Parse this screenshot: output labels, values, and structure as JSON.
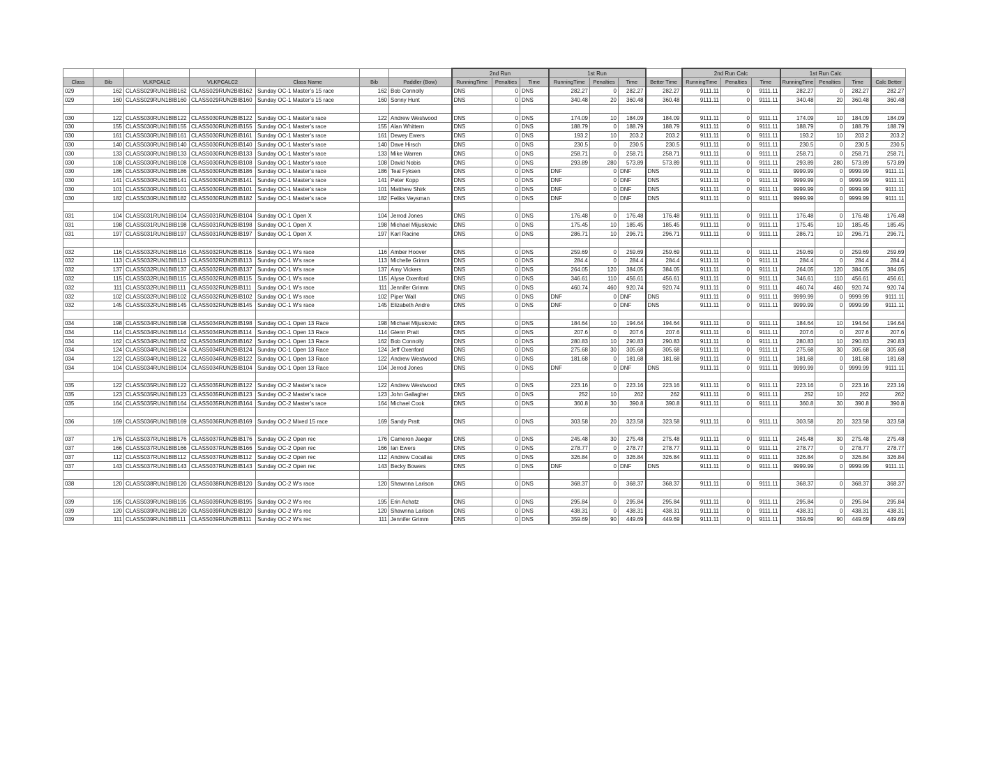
{
  "table": {
    "group_headers": [
      {
        "label": "2nd Run",
        "start": 7,
        "span": 3
      },
      {
        "label": "1st Run",
        "start": 10,
        "span": 3
      },
      {
        "label": "2nd Run Calc",
        "start": 14,
        "span": 3
      },
      {
        "label": "1st Run Calc",
        "start": 17,
        "span": 3
      }
    ],
    "columns": [
      "Class",
      "Bib",
      "VLKPCALC",
      "VLKPCALC2",
      "Class Name",
      "Bib",
      "Paddler (Bow)",
      "RunningTime",
      "Penalties",
      "Time",
      "RunningTime",
      "Penalties",
      "Time",
      "Better Time",
      "RunningTime",
      "Penalties",
      "Time",
      "RunningTime",
      "Penalties",
      "Time",
      "Calc Better"
    ],
    "rows": [
      [
        "029",
        "162",
        "CLASS029RUN1BIB162",
        "CLASS029RUN2BIB162",
        "Sunday OC-1 Master’s 15 race",
        "162",
        "Bob Connolly",
        "DNS",
        "0",
        "DNS",
        "282.27",
        "0",
        "282.27",
        "282.27",
        "9111.11",
        "0",
        "9111.11",
        "282.27",
        "0",
        "282.27",
        "282.27"
      ],
      [
        "029",
        "160",
        "CLASS029RUN1BIB160",
        "CLASS029RUN2BIB160",
        "Sunday OC-1 Master’s 15 race",
        "160",
        "Sonny Hunt",
        "DNS",
        "0",
        "DNS",
        "340.48",
        "20",
        "360.48",
        "360.48",
        "9111.11",
        "0",
        "9111.11",
        "340.48",
        "20",
        "360.48",
        "360.48"
      ],
      [],
      [
        "030",
        "122",
        "CLASS030RUN1BIB122",
        "CLASS030RUN2BIB122",
        "Sunday OC-1 Master’s race",
        "122",
        "Andrew Westwood",
        "DNS",
        "0",
        "DNS",
        "174.09",
        "10",
        "184.09",
        "184.09",
        "9111.11",
        "0",
        "9111.11",
        "174.09",
        "10",
        "184.09",
        "184.09"
      ],
      [
        "030",
        "155",
        "CLASS030RUN1BIB155",
        "CLASS030RUN2BIB155",
        "Sunday OC-1 Master’s race",
        "155",
        "Alan Whittern",
        "DNS",
        "0",
        "DNS",
        "188.79",
        "0",
        "188.79",
        "188.79",
        "9111.11",
        "0",
        "9111.11",
        "188.79",
        "0",
        "188.79",
        "188.79"
      ],
      [
        "030",
        "161",
        "CLASS030RUN1BIB161",
        "CLASS030RUN2BIB161",
        "Sunday OC-1 Master’s race",
        "161",
        "Dewey Ewers",
        "DNS",
        "0",
        "DNS",
        "193.2",
        "10",
        "203.2",
        "203.2",
        "9111.11",
        "0",
        "9111.11",
        "193.2",
        "10",
        "203.2",
        "203.2"
      ],
      [
        "030",
        "140",
        "CLASS030RUN1BIB140",
        "CLASS030RUN2BIB140",
        "Sunday OC-1 Master’s race",
        "140",
        "Dave Hirsch",
        "DNS",
        "0",
        "DNS",
        "230.5",
        "0",
        "230.5",
        "230.5",
        "9111.11",
        "0",
        "9111.11",
        "230.5",
        "0",
        "230.5",
        "230.5"
      ],
      [
        "030",
        "133",
        "CLASS030RUN1BIB133",
        "CLASS030RUN2BIB133",
        "Sunday OC-1 Master’s race",
        "133",
        "Mike Warren",
        "DNS",
        "0",
        "DNS",
        "258.71",
        "0",
        "258.71",
        "258.71",
        "9111.11",
        "0",
        "9111.11",
        "258.71",
        "0",
        "258.71",
        "258.71"
      ],
      [
        "030",
        "108",
        "CLASS030RUN1BIB108",
        "CLASS030RUN2BIB108",
        "Sunday OC-1 Master’s race",
        "108",
        "David Nobis",
        "DNS",
        "0",
        "DNS",
        "293.89",
        "280",
        "573.89",
        "573.89",
        "9111.11",
        "0",
        "9111.11",
        "293.89",
        "280",
        "573.89",
        "573.89"
      ],
      [
        "030",
        "186",
        "CLASS030RUN1BIB186",
        "CLASS030RUN2BIB186",
        "Sunday OC-1 Master’s race",
        "186",
        "Teal Fyksen",
        "DNS",
        "0",
        "DNS",
        "DNF",
        "0",
        "DNF",
        "DNS",
        "9111.11",
        "0",
        "9111.11",
        "9999.99",
        "0",
        "9999.99",
        "9111.11"
      ],
      [
        "030",
        "141",
        "CLASS030RUN1BIB141",
        "CLASS030RUN2BIB141",
        "Sunday OC-1 Master’s race",
        "141",
        "Peter Kopp",
        "DNS",
        "0",
        "DNS",
        "DNF",
        "0",
        "DNF",
        "DNS",
        "9111.11",
        "0",
        "9111.11",
        "9999.99",
        "0",
        "9999.99",
        "9111.11"
      ],
      [
        "030",
        "101",
        "CLASS030RUN1BIB101",
        "CLASS030RUN2BIB101",
        "Sunday OC-1 Master’s race",
        "101",
        "Matthew Shirk",
        "DNS",
        "0",
        "DNS",
        "DNF",
        "0",
        "DNF",
        "DNS",
        "9111.11",
        "0",
        "9111.11",
        "9999.99",
        "0",
        "9999.99",
        "9111.11"
      ],
      [
        "030",
        "182",
        "CLASS030RUN1BIB182",
        "CLASS030RUN2BIB182",
        "Sunday OC-1 Master’s race",
        "182",
        "Feliks Veysman",
        "DNS",
        "0",
        "DNS",
        "DNF",
        "0",
        "DNF",
        "DNS",
        "9111.11",
        "0",
        "9111.11",
        "9999.99",
        "0",
        "9999.99",
        "9111.11"
      ],
      [],
      [
        "031",
        "104",
        "CLASS031RUN1BIB104",
        "CLASS031RUN2BIB104",
        "Sunday OC-1 Open X",
        "104",
        "Jerrod Jones",
        "DNS",
        "0",
        "DNS",
        "176.48",
        "0",
        "176.48",
        "176.48",
        "9111.11",
        "0",
        "9111.11",
        "176.48",
        "0",
        "176.48",
        "176.48"
      ],
      [
        "031",
        "198",
        "CLASS031RUN1BIB198",
        "CLASS031RUN2BIB198",
        "Sunday OC-1 Open X",
        "198",
        "Michael Mijuskovic",
        "DNS",
        "0",
        "DNS",
        "175.45",
        "10",
        "185.45",
        "185.45",
        "9111.11",
        "0",
        "9111.11",
        "175.45",
        "10",
        "185.45",
        "185.45"
      ],
      [
        "031",
        "197",
        "CLASS031RUN1BIB197",
        "CLASS031RUN2BIB197",
        "Sunday OC-1 Open X",
        "197",
        "Karl Racine",
        "DNS",
        "0",
        "DNS",
        "286.71",
        "10",
        "296.71",
        "296.71",
        "9111.11",
        "0",
        "9111.11",
        "286.71",
        "10",
        "296.71",
        "296.71"
      ],
      [],
      [
        "032",
        "116",
        "CLASS032RUN1BIB116",
        "CLASS032RUN2BIB116",
        "Sunday OC-1 W’s race",
        "116",
        "Amber Hoover",
        "DNS",
        "0",
        "DNS",
        "259.69",
        "0",
        "259.69",
        "259.69",
        "9111.11",
        "0",
        "9111.11",
        "259.69",
        "0",
        "259.69",
        "259.69"
      ],
      [
        "032",
        "113",
        "CLASS032RUN1BIB113",
        "CLASS032RUN2BIB113",
        "Sunday OC-1 W’s race",
        "113",
        "Michelle Grimm",
        "DNS",
        "0",
        "DNS",
        "284.4",
        "0",
        "284.4",
        "284.4",
        "9111.11",
        "0",
        "9111.11",
        "284.4",
        "0",
        "284.4",
        "284.4"
      ],
      [
        "032",
        "137",
        "CLASS032RUN1BIB137",
        "CLASS032RUN2BIB137",
        "Sunday OC-1 W’s race",
        "137",
        "Amy Vickers",
        "DNS",
        "0",
        "DNS",
        "264.05",
        "120",
        "384.05",
        "384.05",
        "9111.11",
        "0",
        "9111.11",
        "264.05",
        "120",
        "384.05",
        "384.05"
      ],
      [
        "032",
        "115",
        "CLASS032RUN1BIB115",
        "CLASS032RUN2BIB115",
        "Sunday OC-1 W’s race",
        "115",
        "Alyse Oxenford",
        "DNS",
        "0",
        "DNS",
        "346.61",
        "110",
        "456.61",
        "456.61",
        "9111.11",
        "0",
        "9111.11",
        "346.61",
        "110",
        "456.61",
        "456.61"
      ],
      [
        "032",
        "111",
        "CLASS032RUN1BIB111",
        "CLASS032RUN2BIB111",
        "Sunday OC-1 W’s race",
        "111",
        "Jennifer Grimm",
        "DNS",
        "0",
        "DNS",
        "460.74",
        "460",
        "920.74",
        "920.74",
        "9111.11",
        "0",
        "9111.11",
        "460.74",
        "460",
        "920.74",
        "920.74"
      ],
      [
        "032",
        "102",
        "CLASS032RUN1BIB102",
        "CLASS032RUN2BIB102",
        "Sunday OC-1 W’s race",
        "102",
        "Piper Wall",
        "DNS",
        "0",
        "DNS",
        "DNF",
        "0",
        "DNF",
        "DNS",
        "9111.11",
        "0",
        "9111.11",
        "9999.99",
        "0",
        "9999.99",
        "9111.11"
      ],
      [
        "032",
        "145",
        "CLASS032RUN1BIB145",
        "CLASS032RUN2BIB145",
        "Sunday OC-1 W’s race",
        "145",
        "Elizabeth Andre",
        "DNS",
        "0",
        "DNS",
        "DNF",
        "0",
        "DNF",
        "DNS",
        "9111.11",
        "0",
        "9111.11",
        "9999.99",
        "0",
        "9999.99",
        "9111.11"
      ],
      [],
      [
        "034",
        "198",
        "CLASS034RUN1BIB198",
        "CLASS034RUN2BIB198",
        "Sunday OC-1 Open 13 Race",
        "198",
        "Michael Mijuskovic",
        "DNS",
        "0",
        "DNS",
        "184.64",
        "10",
        "194.64",
        "194.64",
        "9111.11",
        "0",
        "9111.11",
        "184.64",
        "10",
        "194.64",
        "194.64"
      ],
      [
        "034",
        "114",
        "CLASS034RUN1BIB114",
        "CLASS034RUN2BIB114",
        "Sunday OC-1 Open 13 Race",
        "114",
        "Glenn Pratt",
        "DNS",
        "0",
        "DNS",
        "207.6",
        "0",
        "207.6",
        "207.6",
        "9111.11",
        "0",
        "9111.11",
        "207.6",
        "0",
        "207.6",
        "207.6"
      ],
      [
        "034",
        "162",
        "CLASS034RUN1BIB162",
        "CLASS034RUN2BIB162",
        "Sunday OC-1 Open 13 Race",
        "162",
        "Bob Connolly",
        "DNS",
        "0",
        "DNS",
        "280.83",
        "10",
        "290.83",
        "290.83",
        "9111.11",
        "0",
        "9111.11",
        "280.83",
        "10",
        "290.83",
        "290.83"
      ],
      [
        "034",
        "124",
        "CLASS034RUN1BIB124",
        "CLASS034RUN2BIB124",
        "Sunday OC-1 Open 13 Race",
        "124",
        "Jeff Oxenford",
        "DNS",
        "0",
        "DNS",
        "275.68",
        "30",
        "305.68",
        "305.68",
        "9111.11",
        "0",
        "9111.11",
        "275.68",
        "30",
        "305.68",
        "305.68"
      ],
      [
        "034",
        "122",
        "CLASS034RUN1BIB122",
        "CLASS034RUN2BIB122",
        "Sunday OC-1 Open 13 Race",
        "122",
        "Andrew Westwood",
        "DNS",
        "0",
        "DNS",
        "181.68",
        "0",
        "181.68",
        "181.68",
        "9111.11",
        "0",
        "9111.11",
        "181.68",
        "0",
        "181.68",
        "181.68"
      ],
      [
        "034",
        "104",
        "CLASS034RUN1BIB104",
        "CLASS034RUN2BIB104",
        "Sunday OC-1 Open 13 Race",
        "104",
        "Jerrod Jones",
        "DNS",
        "0",
        "DNS",
        "DNF",
        "0",
        "DNF",
        "DNS",
        "9111.11",
        "0",
        "9111.11",
        "9999.99",
        "0",
        "9999.99",
        "9111.11"
      ],
      [],
      [
        "035",
        "122",
        "CLASS035RUN1BIB122",
        "CLASS035RUN2BIB122",
        "Sunday OC-2 Master’s race",
        "122",
        "Andrew Westwood",
        "DNS",
        "0",
        "DNS",
        "223.16",
        "0",
        "223.16",
        "223.16",
        "9111.11",
        "0",
        "9111.11",
        "223.16",
        "0",
        "223.16",
        "223.16"
      ],
      [
        "035",
        "123",
        "CLASS035RUN1BIB123",
        "CLASS035RUN2BIB123",
        "Sunday OC-2 Master’s race",
        "123",
        "John Gallagher",
        "DNS",
        "0",
        "DNS",
        "252",
        "10",
        "262",
        "262",
        "9111.11",
        "0",
        "9111.11",
        "252",
        "10",
        "262",
        "262"
      ],
      [
        "035",
        "164",
        "CLASS035RUN1BIB164",
        "CLASS035RUN2BIB164",
        "Sunday OC-2 Master’s race",
        "164",
        "Michael Cook",
        "DNS",
        "0",
        "DNS",
        "360.8",
        "30",
        "390.8",
        "390.8",
        "9111.11",
        "0",
        "9111.11",
        "360.8",
        "30",
        "390.8",
        "390.8"
      ],
      [],
      [
        "036",
        "169",
        "CLASS036RUN1BIB169",
        "CLASS036RUN2BIB169",
        "Sunday OC-2 Mixed 15 race",
        "169",
        "Sandy Pratt",
        "DNS",
        "0",
        "DNS",
        "303.58",
        "20",
        "323.58",
        "323.58",
        "9111.11",
        "0",
        "9111.11",
        "303.58",
        "20",
        "323.58",
        "323.58"
      ],
      [],
      [
        "037",
        "176",
        "CLASS037RUN1BIB176",
        "CLASS037RUN2BIB176",
        "Sunday OC-2 Open rec",
        "176",
        "Cameron Jaeger",
        "DNS",
        "0",
        "DNS",
        "245.48",
        "30",
        "275.48",
        "275.48",
        "9111.11",
        "0",
        "9111.11",
        "245.48",
        "30",
        "275.48",
        "275.48"
      ],
      [
        "037",
        "166",
        "CLASS037RUN1BIB166",
        "CLASS037RUN2BIB166",
        "Sunday OC-2 Open rec",
        "166",
        "Ian Ewers",
        "DNS",
        "0",
        "DNS",
        "278.77",
        "0",
        "278.77",
        "278.77",
        "9111.11",
        "0",
        "9111.11",
        "278.77",
        "0",
        "278.77",
        "278.77"
      ],
      [
        "037",
        "112",
        "CLASS037RUN1BIB112",
        "CLASS037RUN2BIB112",
        "Sunday OC-2 Open rec",
        "112",
        "Andrew Cocallas",
        "DNS",
        "0",
        "DNS",
        "326.84",
        "0",
        "326.84",
        "326.84",
        "9111.11",
        "0",
        "9111.11",
        "326.84",
        "0",
        "326.84",
        "326.84"
      ],
      [
        "037",
        "143",
        "CLASS037RUN1BIB143",
        "CLASS037RUN2BIB143",
        "Sunday OC-2 Open rec",
        "143",
        "Becky Bowers",
        "DNS",
        "0",
        "DNS",
        "DNF",
        "0",
        "DNF",
        "DNS",
        "9111.11",
        "0",
        "9111.11",
        "9999.99",
        "0",
        "9999.99",
        "9111.11"
      ],
      [],
      [
        "038",
        "120",
        "CLASS038RUN1BIB120",
        "CLASS038RUN2BIB120",
        "Sunday OC-2 W’s race",
        "120",
        "Shawnna Larison",
        "DNS",
        "0",
        "DNS",
        "368.37",
        "0",
        "368.37",
        "368.37",
        "9111.11",
        "0",
        "9111.11",
        "368.37",
        "0",
        "368.37",
        "368.37"
      ],
      [],
      [
        "039",
        "195",
        "CLASS039RUN1BIB195",
        "CLASS039RUN2BIB195",
        "Sunday OC-2 W’s rec",
        "195",
        "Erin Achatz",
        "DNS",
        "0",
        "DNS",
        "295.84",
        "0",
        "295.84",
        "295.84",
        "9111.11",
        "0",
        "9111.11",
        "295.84",
        "0",
        "295.84",
        "295.84"
      ],
      [
        "039",
        "120",
        "CLASS039RUN1BIB120",
        "CLASS039RUN2BIB120",
        "Sunday OC-2 W’s rec",
        "120",
        "Shawnna Larison",
        "DNS",
        "0",
        "DNS",
        "438.31",
        "0",
        "438.31",
        "438.31",
        "9111.11",
        "0",
        "9111.11",
        "438.31",
        "0",
        "438.31",
        "438.31"
      ],
      [
        "039",
        "111",
        "CLASS039RUN1BIB111",
        "CLASS039RUN2BIB111",
        "Sunday OC-2 W’s rec",
        "111",
        "Jennifer Grimm",
        "DNS",
        "0",
        "DNS",
        "359.69",
        "90",
        "449.69",
        "449.69",
        "9111.11",
        "0",
        "9111.11",
        "359.69",
        "90",
        "449.69",
        "449.69"
      ]
    ]
  }
}
